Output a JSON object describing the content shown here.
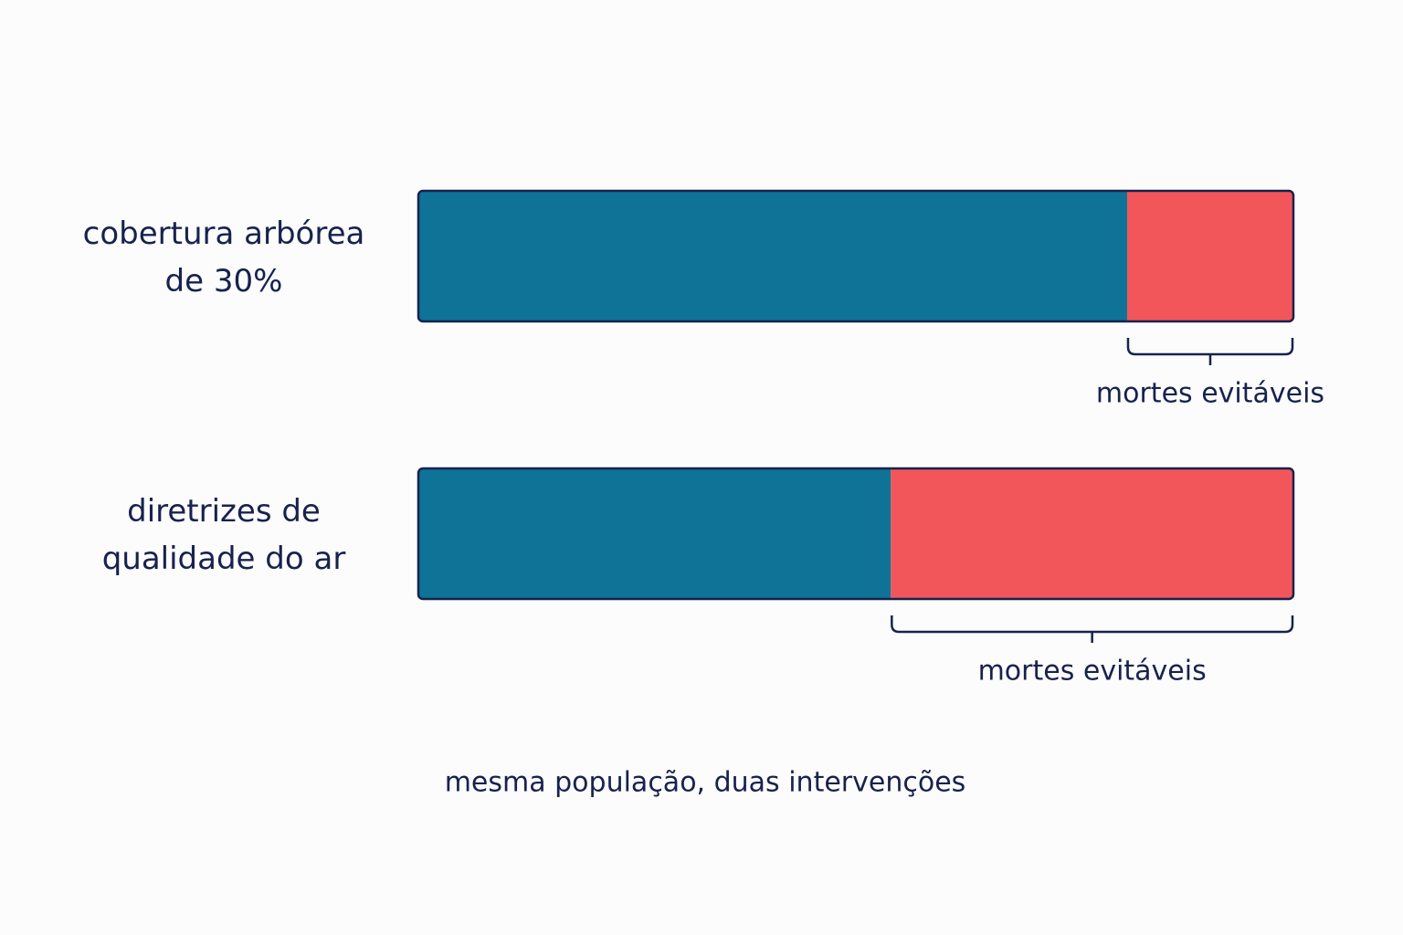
{
  "chart_data": {
    "type": "stacked-barh",
    "categories": [
      "cobertura arbórea de 30%",
      "diretrizes de qualidade do ar"
    ],
    "series": [
      {
        "color": "#0e7396",
        "values": [
          81,
          54
        ]
      },
      {
        "color": "#f2555a",
        "values": [
          19,
          46
        ]
      }
    ],
    "xlim": [
      0,
      100
    ],
    "annotations": [
      "mortes evitáveis",
      "mortes evitáveis"
    ],
    "caption": "mesma população, duas intervenções"
  }
}
